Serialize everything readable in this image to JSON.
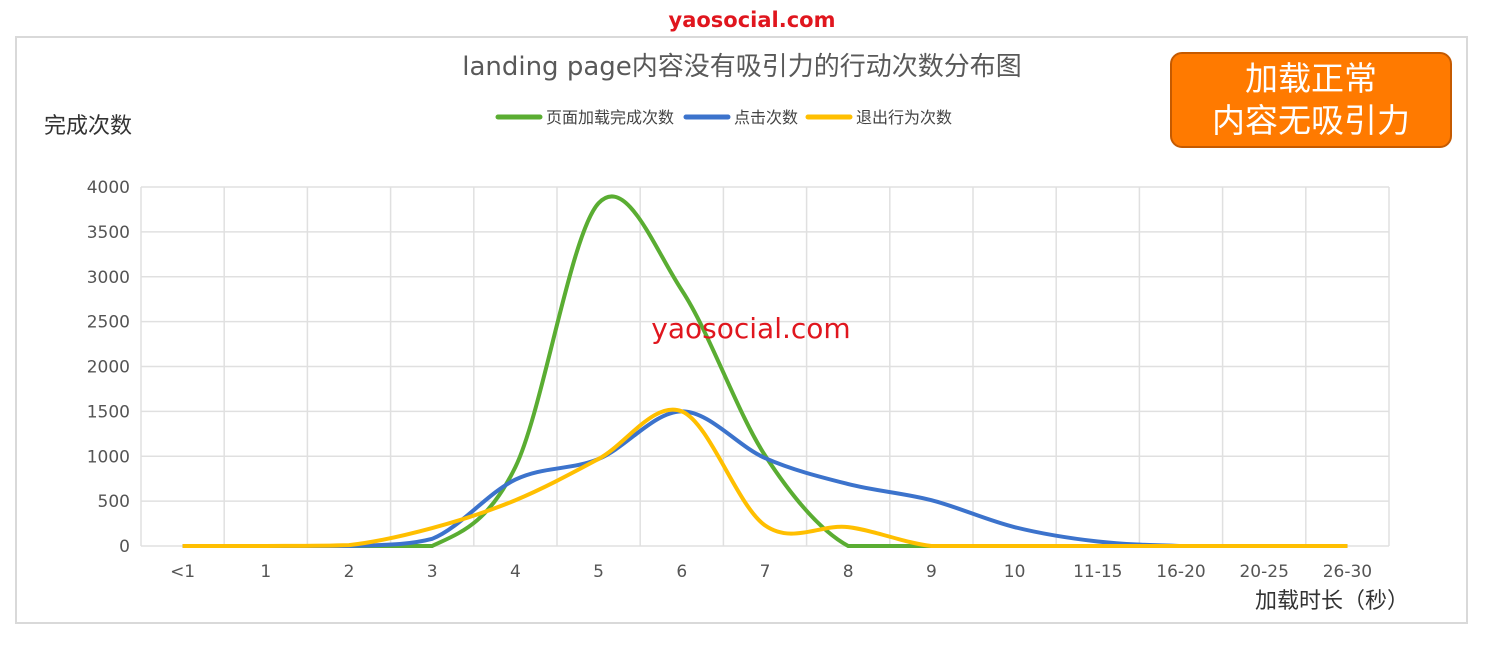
{
  "watermark": "yaosocial.com",
  "badge": {
    "line1": "加载正常",
    "line2": "内容无吸引力",
    "color": "#ff7a00"
  },
  "chart_data": {
    "type": "line",
    "title": "landing page内容没有吸引力的行动次数分布图",
    "xlabel": "加载时长（秒）",
    "ylabel": "完成次数",
    "categories": [
      "<1",
      "1",
      "2",
      "3",
      "4",
      "5",
      "6",
      "7",
      "8",
      "9",
      "10",
      "11-15",
      "16-20",
      "20-25",
      "26-30"
    ],
    "ylim": [
      0,
      4000
    ],
    "yticks": [
      0,
      500,
      1000,
      1500,
      2000,
      2500,
      3000,
      3500,
      4000
    ],
    "grid": true,
    "smooth": true,
    "legend_position": "top",
    "series": [
      {
        "name": "页面加载完成次数",
        "color": "#5aad32",
        "values": [
          0,
          0,
          0,
          0,
          880,
          3820,
          2850,
          1010,
          0,
          0,
          0,
          0,
          0,
          0,
          0
        ]
      },
      {
        "name": "点击次数",
        "color": "#3c73cc",
        "values": [
          0,
          0,
          0,
          80,
          740,
          970,
          1500,
          980,
          690,
          510,
          210,
          50,
          0,
          0,
          0
        ]
      },
      {
        "name": "退出行为次数",
        "color": "#ffbf00",
        "values": [
          0,
          0,
          10,
          200,
          510,
          970,
          1500,
          230,
          210,
          0,
          0,
          0,
          0,
          0,
          0
        ]
      }
    ]
  }
}
